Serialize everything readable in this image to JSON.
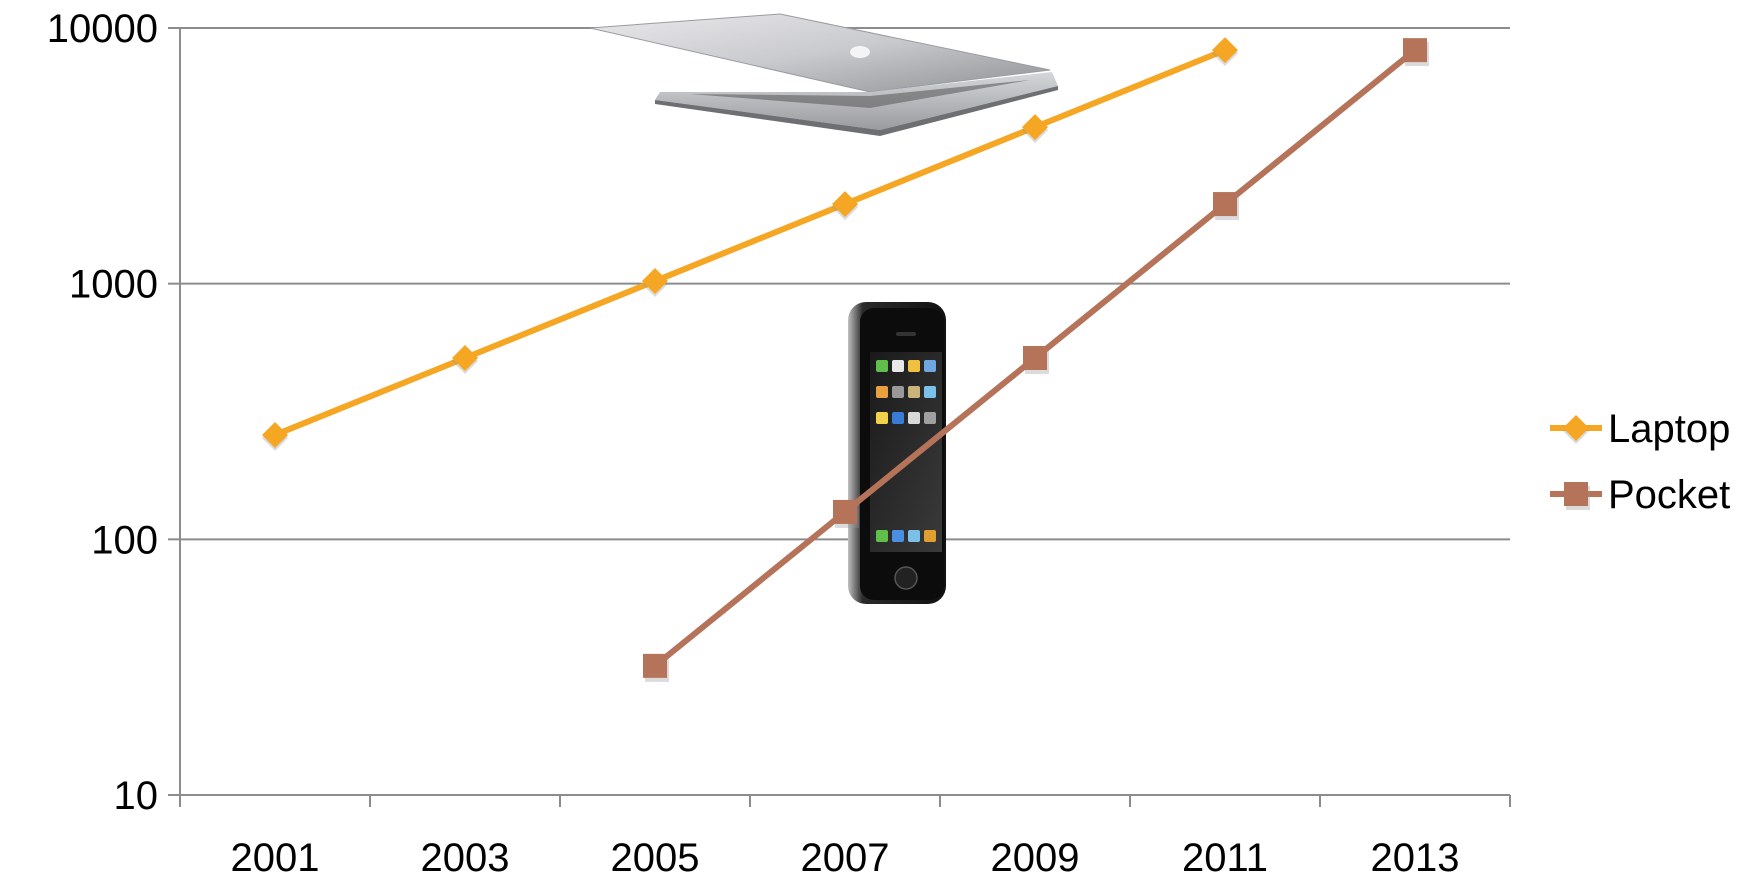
{
  "chart_data": {
    "type": "line",
    "title": "",
    "xlabel": "",
    "ylabel": "",
    "y_scale": "log",
    "ylim": [
      10,
      10000
    ],
    "grid": "horizontal",
    "legend_position": "right",
    "x_tick_labels": [
      "2001",
      "2003",
      "2005",
      "2007",
      "2009",
      "2011",
      "2013"
    ],
    "y_tick_labels": [
      "10000",
      "1000",
      "100",
      "10"
    ],
    "y_tick_values": [
      10000,
      1000,
      100,
      10
    ],
    "series": [
      {
        "name": "Laptop",
        "color": "#F5A623",
        "marker": "diamond",
        "x": [
          2001,
          2003,
          2005,
          2007,
          2009,
          2011
        ],
        "y": [
          256,
          512,
          1024,
          2048,
          4096,
          8192
        ]
      },
      {
        "name": "Pocket",
        "color": "#B5735A",
        "marker": "square",
        "x": [
          2005,
          2007,
          2009,
          2011,
          2013
        ],
        "y": [
          32,
          128,
          512,
          2048,
          8192
        ]
      }
    ],
    "images": [
      {
        "icon": "laptop-icon",
        "description": "laptop"
      },
      {
        "icon": "phone-icon",
        "description": "smartphone"
      }
    ]
  }
}
